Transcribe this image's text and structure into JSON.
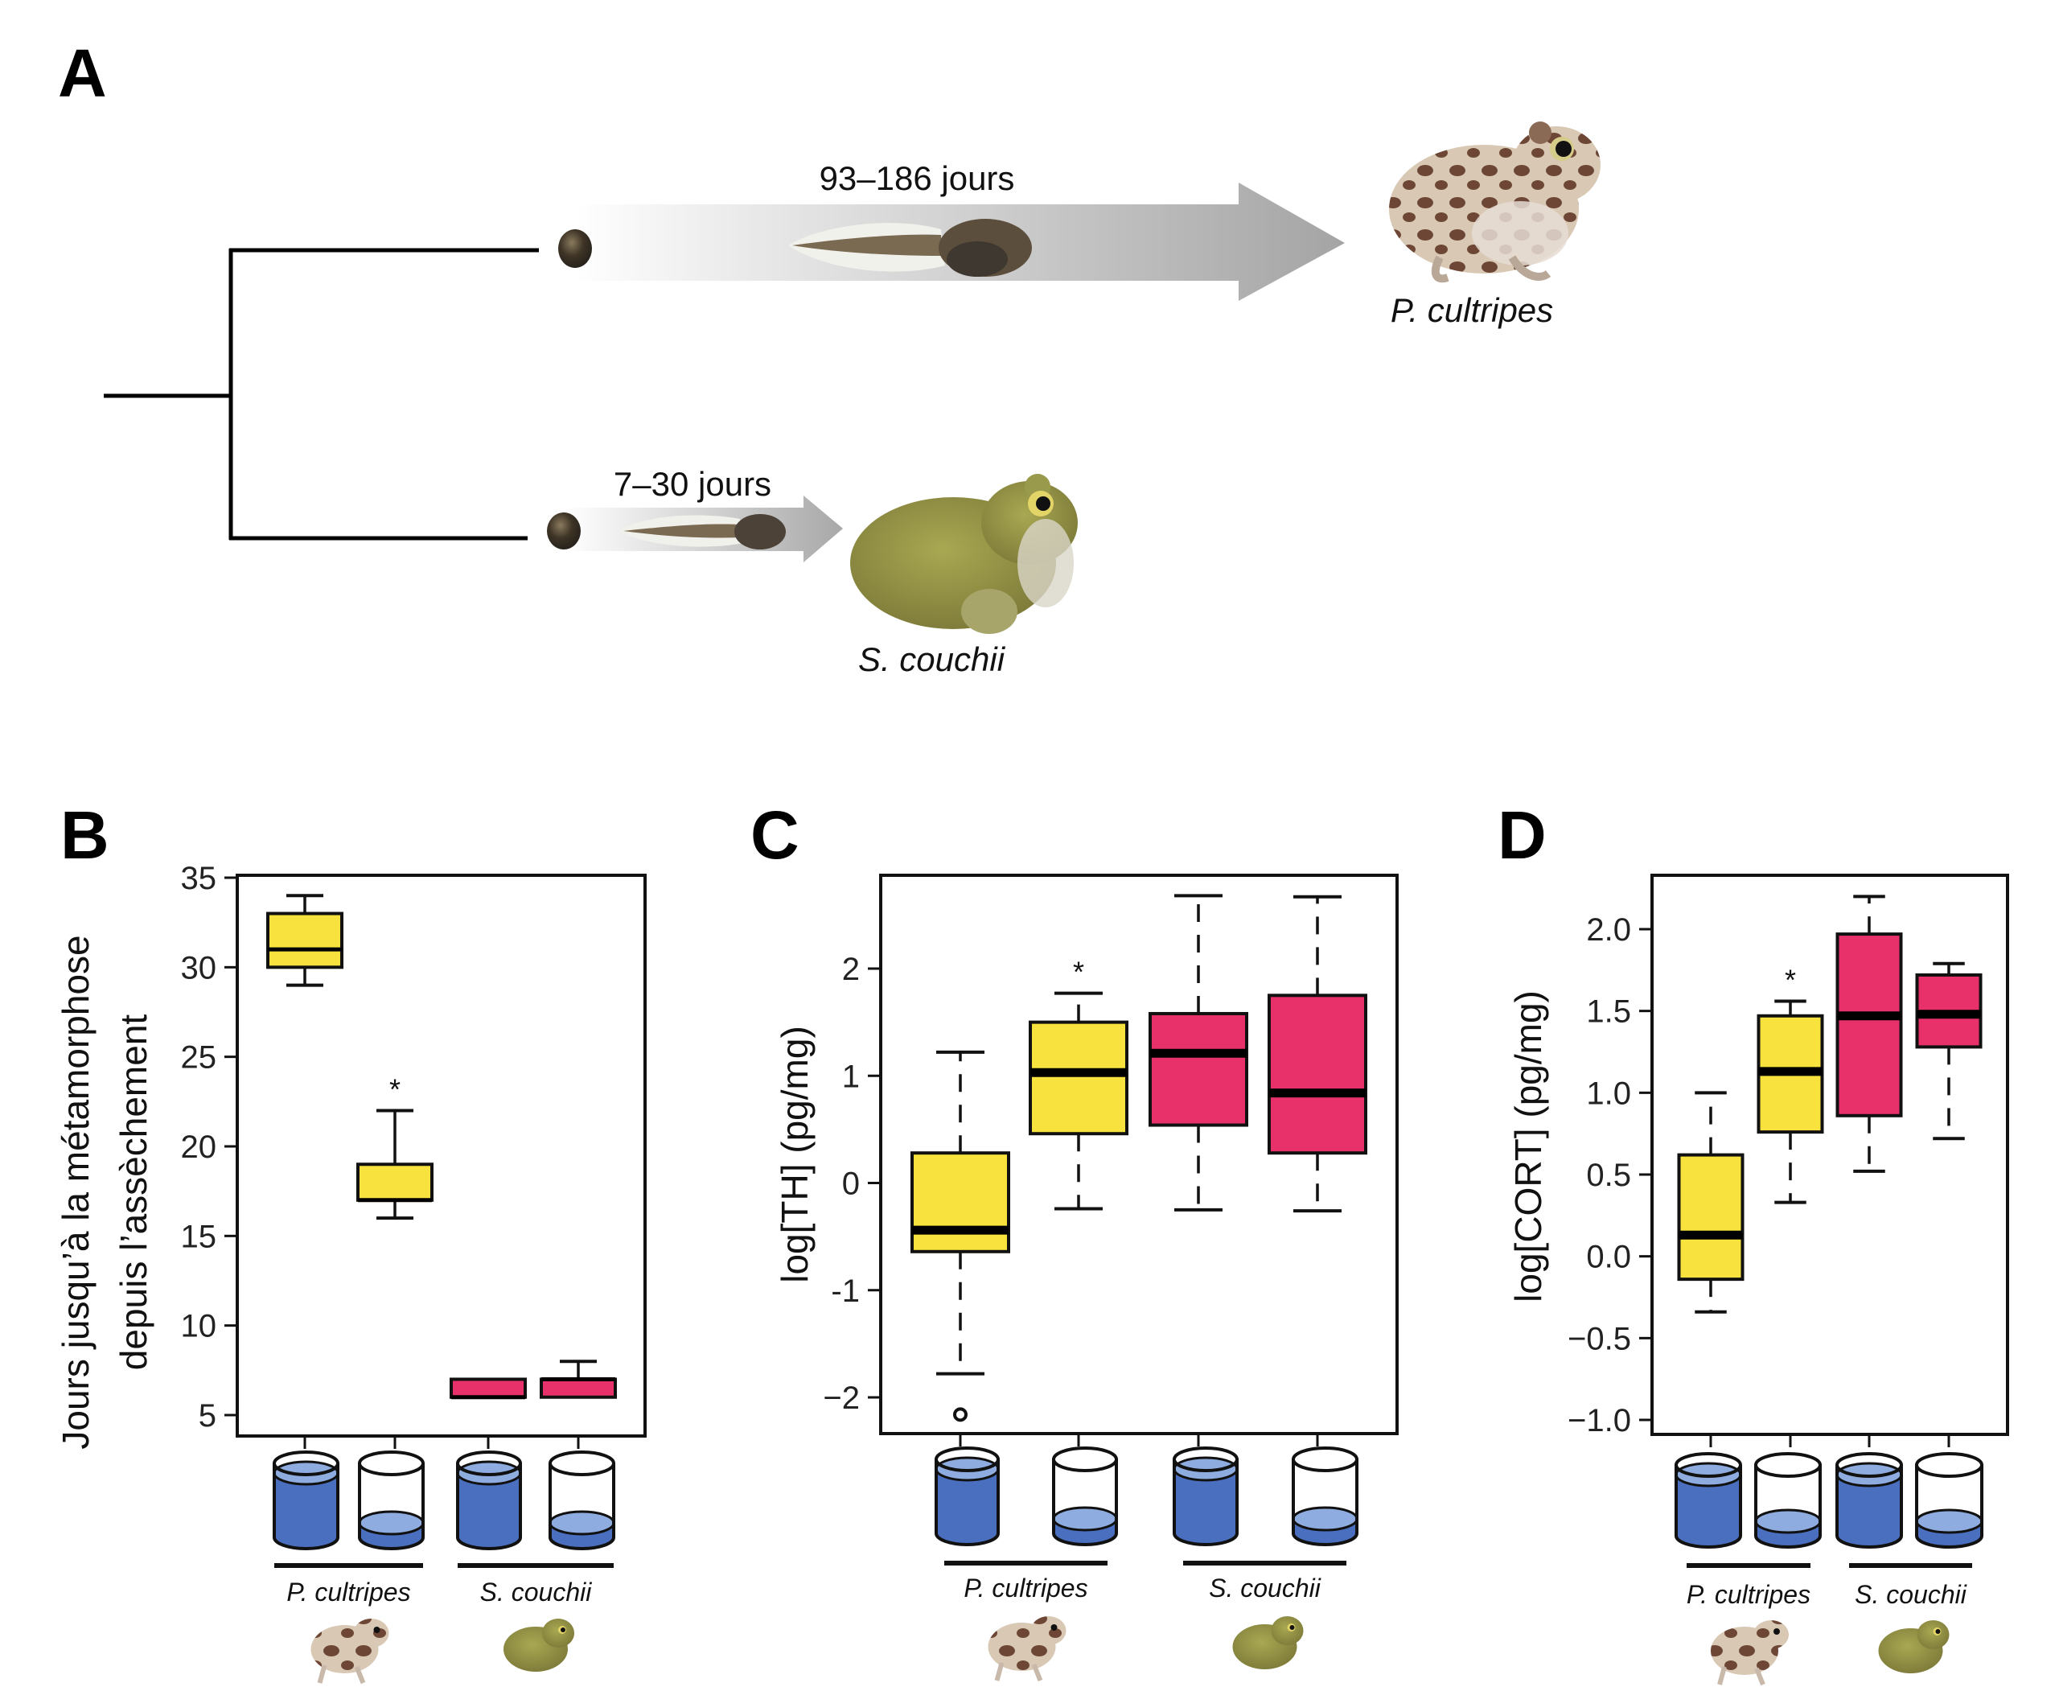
{
  "figure": {
    "panel_a": {
      "letter": "A",
      "top_lineage": {
        "duration": "93–186 jours",
        "species": "P. cultripes"
      },
      "bottom_lineage": {
        "duration": "7–30 jours",
        "species": "S. couchii"
      }
    },
    "colors": {
      "p_cultripes_box": "#f7e23e",
      "s_couchii_box": "#e8306a",
      "water": "#4a6fbe",
      "water_surface": "#8eacdf",
      "arrow_gray": "#a8a8a8"
    },
    "conditions": [
      "eau haute",
      "eau basse",
      "eau haute",
      "eau basse"
    ],
    "group_labels": [
      "P. cultripes",
      "S. couchii"
    ]
  },
  "chart_data": [
    {
      "panel": "B",
      "type": "box",
      "ylabel_line1": "Jours jusqu’à la métamorphose",
      "ylabel_line2": "depuis l’assèchement",
      "ylim": [
        4,
        35.2
      ],
      "yticks": [
        5,
        10,
        15,
        20,
        25,
        30,
        35
      ],
      "whisker_style": "solid",
      "categories": [
        "P. cultripes eau haute",
        "P. cultripes eau basse",
        "S. couchii eau haute",
        "S. couchii eau basse"
      ],
      "boxes": [
        {
          "species": "P. cultripes",
          "min": 29,
          "q1": 30,
          "median": 31,
          "q3": 33,
          "max": 34,
          "outliers": [],
          "star": ""
        },
        {
          "species": "P. cultripes",
          "min": 16,
          "q1": 17,
          "median": 17,
          "q3": 19,
          "max": 22,
          "outliers": [],
          "star": "*"
        },
        {
          "species": "S. couchii",
          "min": 6,
          "q1": 6,
          "median": 6,
          "q3": 7,
          "max": 7,
          "outliers": [],
          "star": ""
        },
        {
          "species": "S. couchii",
          "min": 6,
          "q1": 6,
          "median": 7,
          "q3": 7,
          "max": 8,
          "outliers": [],
          "star": ""
        }
      ]
    },
    {
      "panel": "C",
      "type": "box",
      "ylabel": "log[TH] (pg/mg)",
      "ylim": [
        -2.35,
        2.85
      ],
      "yticks": [
        -2,
        -1,
        0,
        1,
        2
      ],
      "ytick_labels": [
        "−2",
        "-1",
        "0",
        "1",
        "2"
      ],
      "whisker_style": "dashed",
      "categories": [
        "P. cultripes eau haute",
        "P. cultripes eau basse",
        "S. couchii eau haute",
        "S. couchii eau basse"
      ],
      "boxes": [
        {
          "species": "P. cultripes",
          "min": -1.78,
          "q1": -0.64,
          "median": -0.44,
          "q3": 0.28,
          "max": 1.22,
          "outliers": [
            -2.16
          ],
          "star": ""
        },
        {
          "species": "P. cultripes",
          "min": -0.24,
          "q1": 0.46,
          "median": 1.03,
          "q3": 1.5,
          "max": 1.77,
          "outliers": [],
          "star": "*"
        },
        {
          "species": "S. couchii",
          "min": -0.25,
          "q1": 0.54,
          "median": 1.21,
          "q3": 1.58,
          "max": 2.68,
          "outliers": [],
          "star": ""
        },
        {
          "species": "S. couchii",
          "min": -0.26,
          "q1": 0.28,
          "median": 0.84,
          "q3": 1.75,
          "max": 2.67,
          "outliers": [],
          "star": ""
        }
      ]
    },
    {
      "panel": "D",
      "type": "box",
      "ylabel": "log[CORT] (pg/mg)",
      "ylim": [
        -1.09,
        2.33
      ],
      "yticks": [
        -1.0,
        -0.5,
        0.0,
        0.5,
        1.0,
        1.5,
        2.0
      ],
      "ytick_labels": [
        "−1.0",
        "−0.5",
        "0.0",
        "0.5",
        "1.0",
        "1.5",
        "2.0"
      ],
      "whisker_style": "dashed",
      "categories": [
        "P. cultripes eau haute",
        "P. cultripes eau basse",
        "S. couchii eau haute",
        "S. couchii eau basse"
      ],
      "boxes": [
        {
          "species": "P. cultripes",
          "min": -0.34,
          "q1": -0.14,
          "median": 0.13,
          "q3": 0.62,
          "max": 1.0,
          "outliers": [],
          "star": ""
        },
        {
          "species": "P. cultripes",
          "min": 0.33,
          "q1": 0.76,
          "median": 1.13,
          "q3": 1.47,
          "max": 1.56,
          "outliers": [],
          "star": "*"
        },
        {
          "species": "S. couchii",
          "min": 0.52,
          "q1": 0.86,
          "median": 1.47,
          "q3": 1.97,
          "max": 2.2,
          "outliers": [],
          "star": ""
        },
        {
          "species": "S. couchii",
          "min": 0.72,
          "q1": 1.28,
          "median": 1.48,
          "q3": 1.72,
          "max": 1.79,
          "outliers": [],
          "star": ""
        }
      ]
    }
  ]
}
